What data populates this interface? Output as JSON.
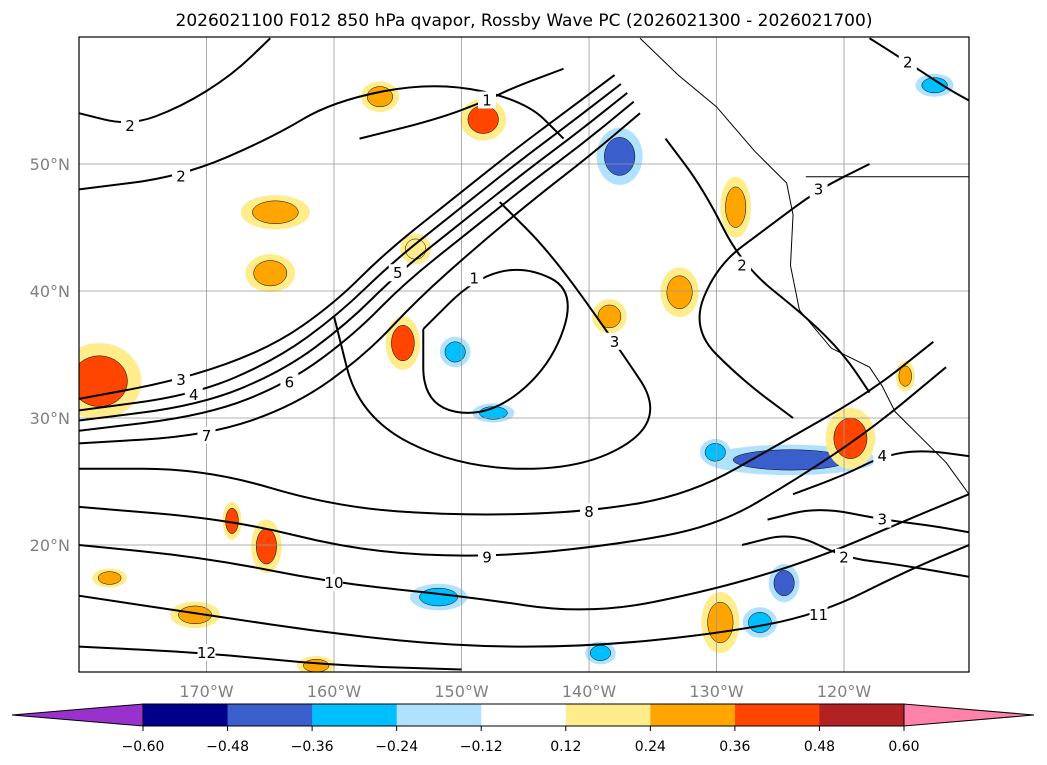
{
  "chart_data": {
    "type": "contour-map",
    "title": "2026021100 F012 850 hPa qvapor, Rossby Wave PC (2026021300 - 2026021700)",
    "projection": "cylindrical",
    "lon_range": [
      -180,
      -110.2
    ],
    "lat_range": [
      10,
      60
    ],
    "grid": true,
    "x_ticks": [
      {
        "lon": -170,
        "label": "170°W"
      },
      {
        "lon": -160,
        "label": "160°W"
      },
      {
        "lon": -150,
        "label": "150°W"
      },
      {
        "lon": -140,
        "label": "140°W"
      },
      {
        "lon": -130,
        "label": "130°W"
      },
      {
        "lon": -120,
        "label": "120°W"
      }
    ],
    "y_ticks": [
      {
        "lat": 50,
        "label": "50°N"
      },
      {
        "lat": 40,
        "label": "40°N"
      },
      {
        "lat": 30,
        "label": "30°N"
      },
      {
        "lat": 20,
        "label": "20°N"
      }
    ],
    "colorbar": {
      "orientation": "horizontal",
      "extend": "both",
      "bounds": [
        -0.6,
        -0.48,
        -0.36,
        -0.24,
        -0.12,
        0.12,
        0.24,
        0.36,
        0.48,
        0.6
      ],
      "tick_labels": [
        "−0.60",
        "−0.48",
        "−0.36",
        "−0.24",
        "−0.12",
        "0.12",
        "0.24",
        "0.36",
        "0.48",
        "0.60"
      ],
      "colors": [
        "#9932cc",
        "#00008b",
        "#3a5fcd",
        "#00bfff",
        "#b0e2ff",
        "#ffffff",
        "#ffec8b",
        "#ffa500",
        "#ff4500",
        "#b22222",
        "#ff82ab"
      ]
    },
    "shaded_anomalies": [
      {
        "lon": -178.4,
        "lat": 32.9,
        "rlon": 2.2,
        "rlat": 2.0,
        "value": 0.42
      },
      {
        "lon": -164.6,
        "lat": 46.2,
        "rlon": 1.8,
        "rlat": 0.9,
        "value": 0.3
      },
      {
        "lon": -148.3,
        "lat": 53.5,
        "rlon": 1.2,
        "rlat": 1.1,
        "value": 0.42
      },
      {
        "lon": -137.6,
        "lat": 50.6,
        "rlon": 1.2,
        "rlat": 1.5,
        "value": -0.45
      },
      {
        "lon": -128.5,
        "lat": 46.6,
        "rlon": 0.8,
        "rlat": 1.6,
        "value": 0.3
      },
      {
        "lon": -132.9,
        "lat": 39.9,
        "rlon": 1.0,
        "rlat": 1.3,
        "value": 0.32
      },
      {
        "lon": -154.6,
        "lat": 35.9,
        "rlon": 0.9,
        "rlat": 1.4,
        "value": 0.38
      },
      {
        "lon": -150.5,
        "lat": 35.2,
        "rlon": 0.8,
        "rlat": 0.8,
        "value": -0.3
      },
      {
        "lon": -165.0,
        "lat": 41.4,
        "rlon": 1.3,
        "rlat": 1.0,
        "value": 0.3
      },
      {
        "lon": -124.2,
        "lat": 26.7,
        "rlon": 4.5,
        "rlat": 0.8,
        "value": -0.38
      },
      {
        "lon": -119.5,
        "lat": 28.4,
        "rlon": 1.3,
        "rlat": 1.6,
        "value": 0.38
      },
      {
        "lon": -165.3,
        "lat": 19.9,
        "rlon": 0.8,
        "rlat": 1.4,
        "value": 0.36
      },
      {
        "lon": -168.0,
        "lat": 21.9,
        "rlon": 0.5,
        "rlat": 1.0,
        "value": 0.38
      },
      {
        "lon": -129.7,
        "lat": 13.9,
        "rlon": 1.0,
        "rlat": 1.6,
        "value": 0.33
      },
      {
        "lon": -151.8,
        "lat": 15.9,
        "rlon": 1.5,
        "rlat": 0.7,
        "value": -0.36
      },
      {
        "lon": -126.6,
        "lat": 13.9,
        "rlon": 0.9,
        "rlat": 0.8,
        "value": -0.3
      },
      {
        "lon": -124.7,
        "lat": 17.0,
        "rlon": 0.8,
        "rlat": 1.0,
        "value": -0.38
      },
      {
        "lon": -156.4,
        "lat": 55.3,
        "rlon": 1.0,
        "rlat": 0.8,
        "value": 0.3
      },
      {
        "lon": -112.9,
        "lat": 56.2,
        "rlon": 1.0,
        "rlat": 0.6,
        "value": -0.3
      },
      {
        "lon": -138.4,
        "lat": 38.0,
        "rlon": 0.9,
        "rlat": 0.9,
        "value": 0.28
      },
      {
        "lon": -130.1,
        "lat": 27.3,
        "rlon": 0.8,
        "rlat": 0.7,
        "value": -0.26
      },
      {
        "lon": -147.5,
        "lat": 30.4,
        "rlon": 1.1,
        "rlat": 0.5,
        "value": -0.26
      },
      {
        "lon": -177.6,
        "lat": 17.4,
        "rlon": 0.9,
        "rlat": 0.5,
        "value": 0.26
      },
      {
        "lon": -170.9,
        "lat": 14.5,
        "rlon": 1.3,
        "rlat": 0.7,
        "value": 0.3
      },
      {
        "lon": -153.6,
        "lat": 43.3,
        "rlon": 0.8,
        "rlat": 0.8,
        "value": 0.22
      },
      {
        "lon": -115.2,
        "lat": 33.3,
        "rlon": 0.5,
        "rlat": 0.8,
        "value": 0.32
      },
      {
        "lon": -139.1,
        "lat": 11.5,
        "rlon": 0.8,
        "rlat": 0.6,
        "value": -0.28
      },
      {
        "lon": -161.4,
        "lat": 10.5,
        "rlon": 1.0,
        "rlat": 0.5,
        "value": 0.28
      }
    ],
    "contours": [
      {
        "level": "3",
        "label_at": 1,
        "points": [
          [
            -180,
            31.5
          ],
          [
            -172,
            33
          ],
          [
            -165,
            35.5
          ],
          [
            -160,
            39
          ],
          [
            -156,
            43
          ],
          [
            -151,
            47
          ],
          [
            -146,
            51
          ],
          [
            -142,
            54
          ],
          [
            -138,
            57
          ]
        ]
      },
      {
        "level": "4",
        "label_at": 1,
        "points": [
          [
            -180,
            30.6
          ],
          [
            -171,
            31.8
          ],
          [
            -164.5,
            34.6
          ],
          [
            -159.6,
            38.2
          ],
          [
            -155.5,
            42.2
          ],
          [
            -150.5,
            46.2
          ],
          [
            -145.5,
            50.2
          ],
          [
            -141.5,
            53.2
          ],
          [
            -137.5,
            56.3
          ]
        ]
      },
      {
        "level": "5",
        "label_at": 4,
        "points": [
          [
            -180,
            29.8
          ],
          [
            -170.5,
            31
          ],
          [
            -164,
            33.7
          ],
          [
            -159,
            37.4
          ],
          [
            -155,
            41.4
          ],
          [
            -150,
            45.4
          ],
          [
            -145,
            49.4
          ],
          [
            -141,
            52.4
          ],
          [
            -137,
            55.6
          ]
        ]
      },
      {
        "level": "6",
        "label_at": 2,
        "points": [
          [
            -180,
            29
          ],
          [
            -170,
            30.2
          ],
          [
            -163.5,
            32.8
          ],
          [
            -158.4,
            36.6
          ],
          [
            -154.5,
            40.6
          ],
          [
            -149.5,
            44.6
          ],
          [
            -144.5,
            48.6
          ],
          [
            -140.5,
            51.6
          ],
          [
            -136.5,
            54.9
          ]
        ]
      },
      {
        "level": "7",
        "label_at": 1,
        "points": [
          [
            -180,
            28
          ],
          [
            -170,
            28.6
          ],
          [
            -163,
            31
          ],
          [
            -157.5,
            35
          ],
          [
            -153.5,
            39.3
          ],
          [
            -148.8,
            43.5
          ],
          [
            -144,
            47.5
          ],
          [
            -140,
            50.6
          ],
          [
            -136,
            54
          ]
        ]
      },
      {
        "level": "8",
        "label_at": 4,
        "points": [
          [
            -180,
            26
          ],
          [
            -170,
            26
          ],
          [
            -160,
            23
          ],
          [
            -150,
            22.3
          ],
          [
            -140,
            22.6
          ],
          [
            -132,
            24
          ],
          [
            -125,
            28
          ],
          [
            -118,
            32
          ],
          [
            -113,
            36
          ]
        ]
      },
      {
        "level": "9",
        "label_at": 3,
        "points": [
          [
            -180,
            23
          ],
          [
            -168,
            22
          ],
          [
            -158,
            19.5
          ],
          [
            -148,
            19
          ],
          [
            -138,
            20
          ],
          [
            -130,
            21.5
          ],
          [
            -124,
            25
          ],
          [
            -118,
            29
          ],
          [
            -112,
            34
          ]
        ]
      },
      {
        "level": "10",
        "label_at": 2,
        "points": [
          [
            -180,
            20
          ],
          [
            -170,
            19
          ],
          [
            -160,
            17
          ],
          [
            -150,
            16
          ],
          [
            -140,
            14.5
          ],
          [
            -130,
            16.5
          ],
          [
            -122,
            19
          ],
          [
            -115,
            22
          ],
          [
            -110.2,
            24
          ]
        ]
      },
      {
        "level": "11",
        "label_at": 6,
        "points": [
          [
            -180,
            16
          ],
          [
            -170,
            14.5
          ],
          [
            -160,
            13
          ],
          [
            -150,
            12
          ],
          [
            -140,
            12
          ],
          [
            -130,
            13
          ],
          [
            -122,
            14.5
          ],
          [
            -115,
            18
          ],
          [
            -110.2,
            20
          ]
        ]
      },
      {
        "level": "12",
        "label_at": 1,
        "points": [
          [
            -180,
            12
          ],
          [
            -170,
            11.5
          ],
          [
            -160,
            10.5
          ],
          [
            -150,
            10.2
          ]
        ]
      },
      {
        "level": "3",
        "label_at": 5,
        "points": [
          [
            -160,
            38
          ],
          [
            -158,
            30
          ],
          [
            -150,
            26
          ],
          [
            -140,
            26
          ],
          [
            -134,
            30
          ],
          [
            -138,
            36
          ],
          [
            -143,
            43
          ],
          [
            -147,
            47
          ]
        ]
      },
      {
        "level": "1",
        "label_at": 1,
        "points": [
          [
            -153,
            37
          ],
          [
            -149,
            41
          ],
          [
            -145,
            42
          ],
          [
            -141,
            40
          ],
          [
            -143,
            34
          ],
          [
            -148,
            30
          ],
          [
            -153,
            31
          ],
          [
            -153,
            37
          ]
        ]
      },
      {
        "level": "2",
        "label_at": 1,
        "points": [
          [
            -180,
            48
          ],
          [
            -172,
            49
          ],
          [
            -165,
            52
          ],
          [
            -160,
            55
          ],
          [
            -152,
            56.5
          ],
          [
            -145,
            55
          ],
          [
            -142,
            52
          ]
        ]
      },
      {
        "level": "1",
        "label_at": 2,
        "points": [
          [
            -158,
            52
          ],
          [
            -152,
            53.5
          ],
          [
            -148,
            55
          ],
          [
            -146,
            56
          ],
          [
            -142,
            57.5
          ]
        ]
      },
      {
        "level": "2",
        "label_at": 2,
        "points": [
          [
            -134,
            52
          ],
          [
            -131,
            48
          ],
          [
            -128,
            42
          ],
          [
            -123,
            38
          ],
          [
            -120,
            35
          ],
          [
            -118,
            32
          ]
        ]
      },
      {
        "level": "3",
        "label_at": 5,
        "points": [
          [
            -124,
            30
          ],
          [
            -128,
            33
          ],
          [
            -132,
            37
          ],
          [
            -130,
            42
          ],
          [
            -126,
            45
          ],
          [
            -122,
            48
          ],
          [
            -118,
            50
          ]
        ]
      },
      {
        "level": "2",
        "label_at": 2,
        "points": [
          [
            -128,
            20
          ],
          [
            -124,
            21
          ],
          [
            -120,
            19
          ],
          [
            -116,
            18.5
          ],
          [
            -110.2,
            17.5
          ]
        ]
      },
      {
        "level": "3",
        "label_at": 2,
        "points": [
          [
            -126,
            22
          ],
          [
            -122,
            23
          ],
          [
            -117,
            22
          ],
          [
            -113,
            21.5
          ],
          [
            -110.2,
            21
          ]
        ]
      },
      {
        "level": "4",
        "label_at": 2,
        "points": [
          [
            -124,
            24
          ],
          [
            -120,
            25.5
          ],
          [
            -117,
            27
          ],
          [
            -114,
            27.5
          ],
          [
            -110.2,
            27
          ]
        ]
      },
      {
        "level": "2",
        "label_at": 1,
        "points": [
          [
            -180,
            54
          ],
          [
            -176,
            53
          ],
          [
            -172,
            54.5
          ],
          [
            -168,
            57
          ],
          [
            -165,
            59.9
          ]
        ]
      },
      {
        "level": "2",
        "label_at": 1,
        "points": [
          [
            -118,
            59.9
          ],
          [
            -115,
            58
          ],
          [
            -112,
            56
          ],
          [
            -110.2,
            55
          ]
        ]
      }
    ],
    "coastline": [
      [
        -136,
        59.9
      ],
      [
        -133,
        57
      ],
      [
        -130,
        54.5
      ],
      [
        -127,
        51
      ],
      [
        -124.5,
        48.5
      ],
      [
        -124,
        46
      ],
      [
        -124.2,
        42
      ],
      [
        -123.5,
        38.5
      ],
      [
        -121,
        35.5
      ],
      [
        -118,
        34
      ],
      [
        -117,
        32.5
      ],
      [
        -116,
        30.5
      ],
      [
        -114,
        28.5
      ],
      [
        -112,
        26.5
      ],
      [
        -110.2,
        24
      ]
    ],
    "borders": [
      [
        [
          -123,
          49
        ],
        [
          -110.2,
          49
        ]
      ]
    ]
  }
}
